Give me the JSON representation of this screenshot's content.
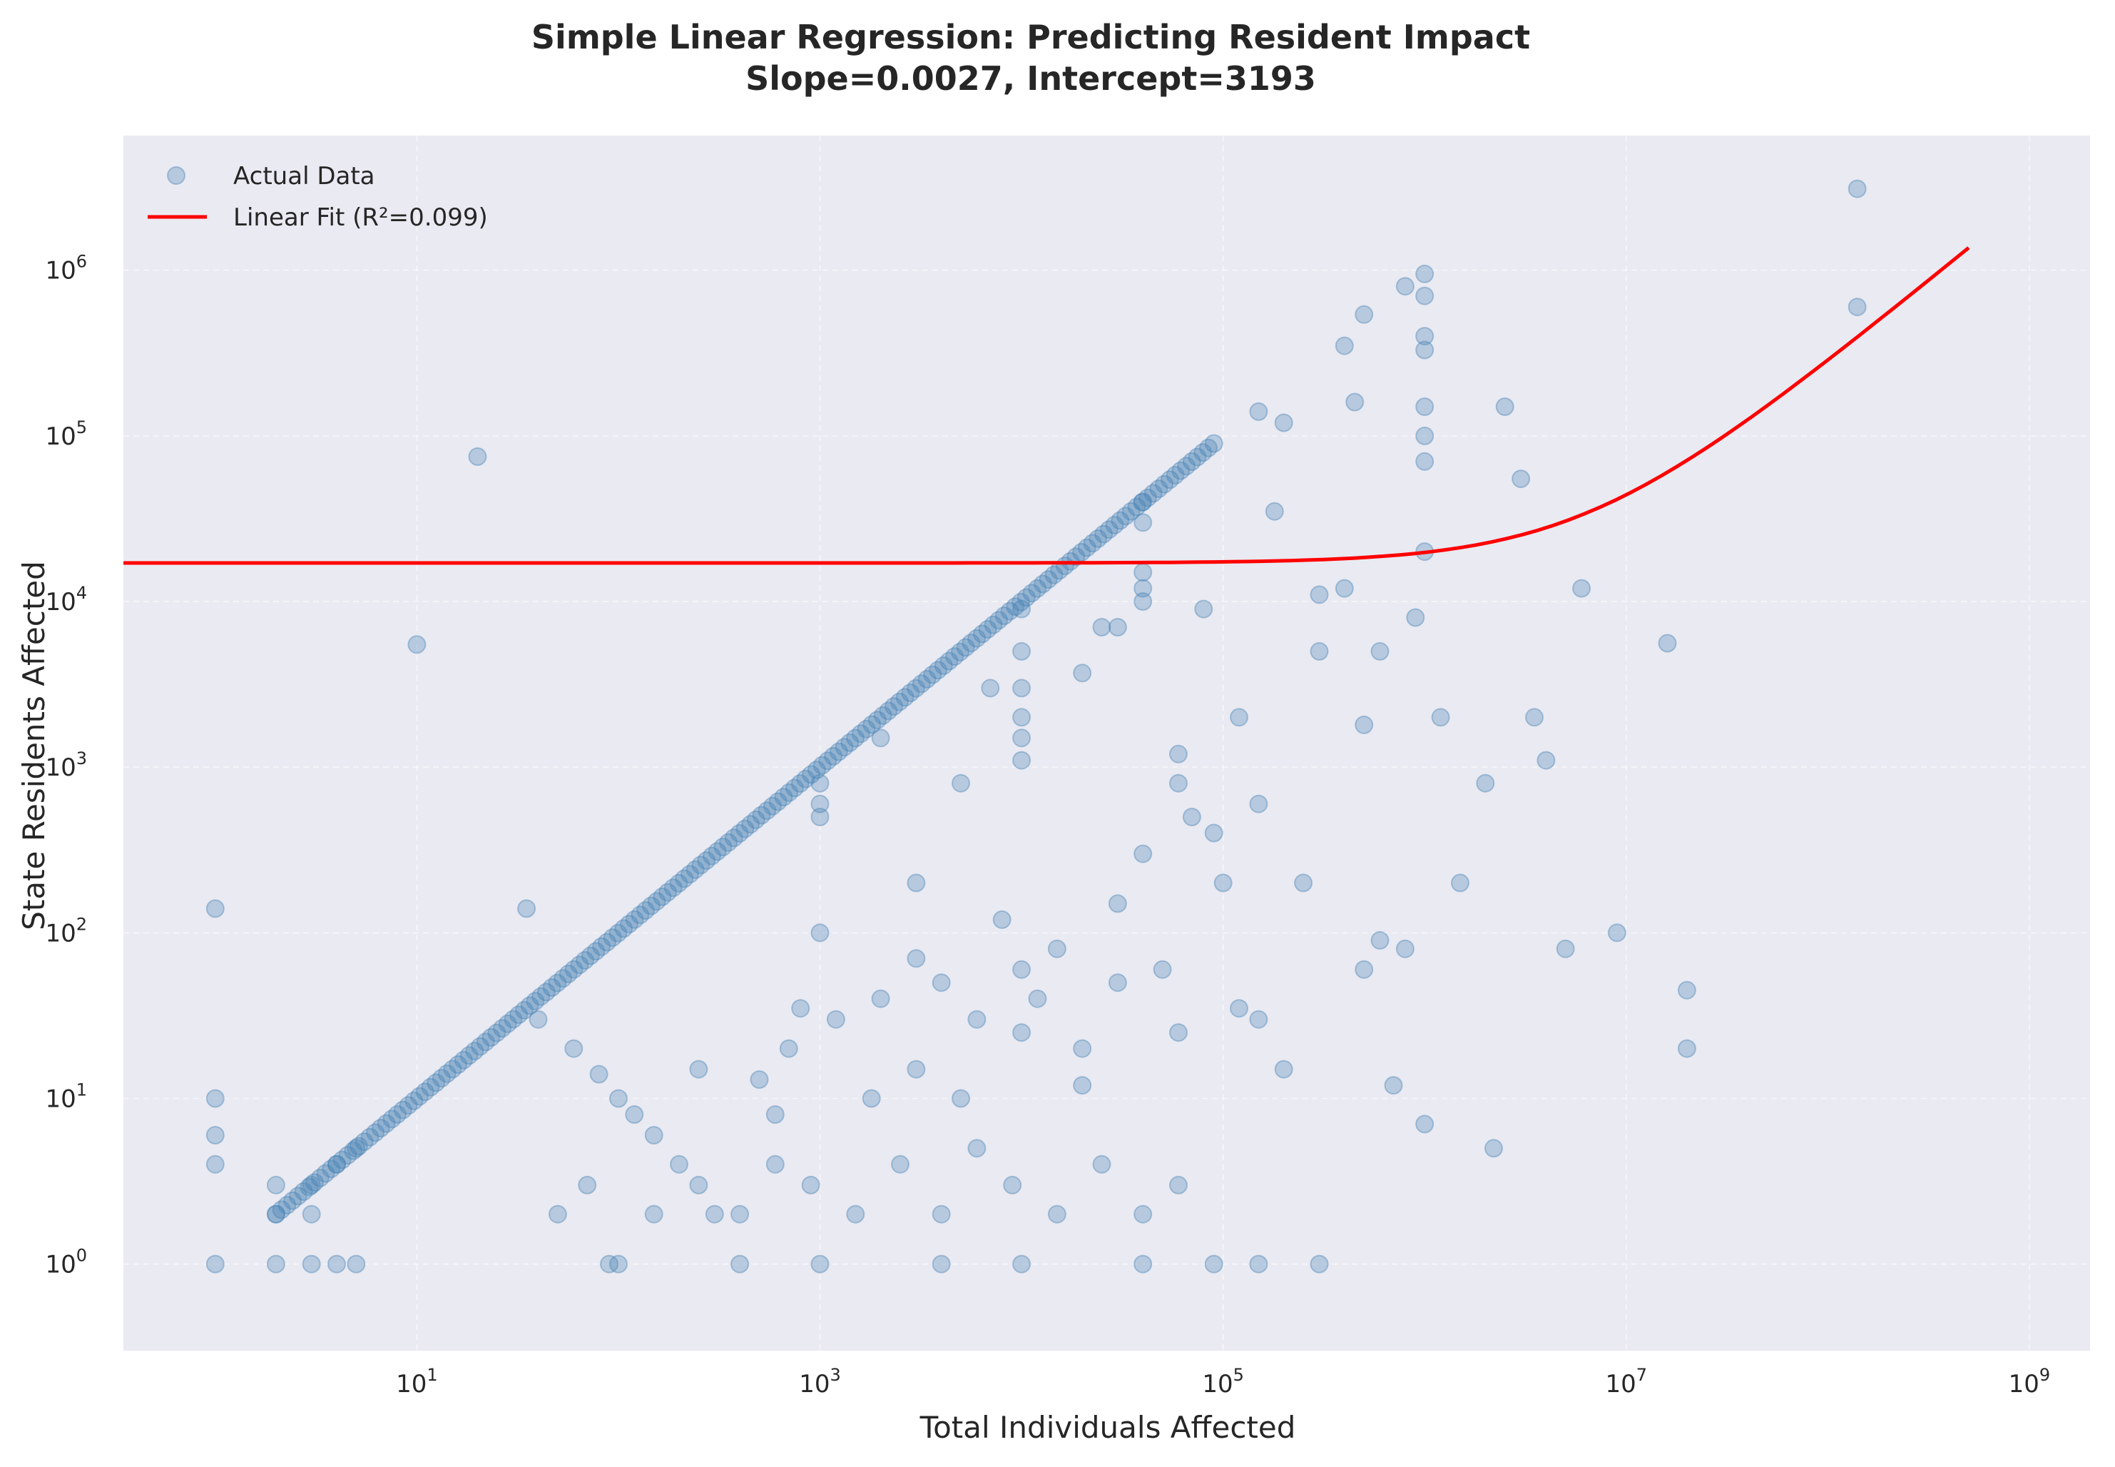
{
  "chart_data": {
    "type": "scatter",
    "title": "Simple Linear Regression: Predicting Resident Impact",
    "subtitle": "Slope=0.0027, Intercept=3193",
    "xlabel": "Total Individuals Affected",
    "ylabel": "State Residents Affected",
    "xscale": "log",
    "yscale": "log",
    "xlim": [
      0.35,
      2000000000
    ],
    "ylim": [
      0.3,
      6500000
    ],
    "xticks": [
      {
        "value": 10,
        "base": "10",
        "exp": "1"
      },
      {
        "value": 1000,
        "base": "10",
        "exp": "3"
      },
      {
        "value": 100000,
        "base": "10",
        "exp": "5"
      },
      {
        "value": 10000000,
        "base": "10",
        "exp": "7"
      },
      {
        "value": 1000000000,
        "base": "10",
        "exp": "9"
      }
    ],
    "yticks": [
      {
        "value": 1,
        "base": "10",
        "exp": "0"
      },
      {
        "value": 10,
        "base": "10",
        "exp": "1"
      },
      {
        "value": 100,
        "base": "10",
        "exp": "2"
      },
      {
        "value": 1000,
        "base": "10",
        "exp": "3"
      },
      {
        "value": 10000,
        "base": "10",
        "exp": "4"
      },
      {
        "value": 100000,
        "base": "10",
        "exp": "5"
      },
      {
        "value": 1000000,
        "base": "10",
        "exp": "6"
      }
    ],
    "grid": true,
    "legend_position": "top-left",
    "colors": {
      "scatter": "#4682b4",
      "fit": "#ff0000",
      "background": "#eaeaf2"
    },
    "series": [
      {
        "name": "Actual Data",
        "kind": "scatter",
        "diagonal_range": [
          2,
          90000
        ],
        "points": [
          [
            1,
            1
          ],
          [
            1,
            4
          ],
          [
            1,
            6
          ],
          [
            1,
            10
          ],
          [
            1,
            140
          ],
          [
            2,
            1
          ],
          [
            2,
            2
          ],
          [
            2,
            3
          ],
          [
            3,
            1
          ],
          [
            3,
            2
          ],
          [
            3,
            3
          ],
          [
            4,
            1
          ],
          [
            4,
            4
          ],
          [
            5,
            1
          ],
          [
            5,
            5
          ],
          [
            10,
            5500
          ],
          [
            20,
            75000
          ],
          [
            35,
            140
          ],
          [
            40,
            30
          ],
          [
            60,
            20
          ],
          [
            80,
            14
          ],
          [
            100,
            10
          ],
          [
            120,
            8
          ],
          [
            150,
            6
          ],
          [
            200,
            4
          ],
          [
            300,
            2
          ],
          [
            500,
            13
          ],
          [
            800,
            35
          ],
          [
            1000,
            100
          ],
          [
            1200,
            30
          ],
          [
            2000,
            40
          ],
          [
            3000,
            70
          ],
          [
            4000,
            50
          ],
          [
            6000,
            30
          ],
          [
            8000,
            120
          ],
          [
            10000,
            60
          ],
          [
            12000,
            40
          ],
          [
            15000,
            80
          ],
          [
            20000,
            20
          ],
          [
            30000,
            150
          ],
          [
            40000,
            300
          ],
          [
            50000,
            60
          ],
          [
            60000,
            1200
          ],
          [
            70000,
            500
          ],
          [
            80000,
            9000
          ],
          [
            100000,
            200
          ],
          [
            120000,
            35
          ],
          [
            150000,
            600
          ],
          [
            200000,
            15
          ],
          [
            250000,
            200
          ],
          [
            300000,
            5000
          ],
          [
            400000,
            12000
          ],
          [
            500000,
            1800
          ],
          [
            600000,
            90
          ],
          [
            700000,
            12
          ],
          [
            800000,
            80
          ],
          [
            1000000,
            7
          ],
          [
            1200000,
            2000
          ],
          [
            1500000,
            200
          ],
          [
            2000000,
            800
          ],
          [
            2200000,
            5
          ],
          [
            2500000,
            150000
          ],
          [
            3000000,
            55000
          ],
          [
            3500000,
            2000
          ],
          [
            4000000,
            1100
          ],
          [
            5000000,
            80
          ],
          [
            6000000,
            12000
          ],
          [
            9000000,
            100
          ],
          [
            16000000,
            5600
          ],
          [
            20000000,
            45
          ],
          [
            20000000,
            20
          ],
          [
            140000000,
            3100000
          ],
          [
            140000000,
            600000
          ],
          [
            1000000,
            950000
          ],
          [
            1000000,
            700000
          ],
          [
            1000000,
            400000
          ],
          [
            1000000,
            330000
          ],
          [
            1000000,
            150000
          ],
          [
            1000000,
            100000
          ],
          [
            1000000,
            70000
          ],
          [
            900000,
            8000
          ],
          [
            800000,
            800000
          ],
          [
            500000,
            540000
          ],
          [
            400000,
            350000
          ],
          [
            450000,
            160000
          ],
          [
            150000,
            140000
          ],
          [
            180000,
            35000
          ],
          [
            200000,
            120000
          ],
          [
            40000,
            40000
          ],
          [
            40000,
            30000
          ],
          [
            40000,
            15000
          ],
          [
            40000,
            12000
          ],
          [
            40000,
            10000
          ],
          [
            10000,
            9000
          ],
          [
            10000,
            5000
          ],
          [
            10000,
            3000
          ],
          [
            10000,
            2000
          ],
          [
            10000,
            1500
          ],
          [
            10000,
            1100
          ],
          [
            1000,
            800
          ],
          [
            1000,
            600
          ],
          [
            1000,
            500
          ],
          [
            2000,
            1500
          ],
          [
            5000,
            800
          ],
          [
            3000,
            200
          ],
          [
            7000,
            3000
          ],
          [
            20000,
            3700
          ],
          [
            25000,
            7000
          ],
          [
            30000,
            7000
          ],
          [
            60000,
            800
          ],
          [
            90000,
            400
          ],
          [
            120000,
            2000
          ],
          [
            300000,
            11000
          ],
          [
            600000,
            5000
          ],
          [
            1000000,
            20000
          ],
          [
            50,
            2
          ],
          [
            70,
            3
          ],
          [
            90,
            1
          ],
          [
            150,
            2
          ],
          [
            250,
            3
          ],
          [
            400,
            2
          ],
          [
            600,
            4
          ],
          [
            900,
            3
          ],
          [
            1500,
            2
          ],
          [
            2500,
            4
          ],
          [
            4000,
            2
          ],
          [
            6000,
            5
          ],
          [
            9000,
            3
          ],
          [
            15000,
            2
          ],
          [
            25000,
            4
          ],
          [
            40000,
            2
          ],
          [
            60000,
            3
          ],
          [
            90000,
            1
          ],
          [
            150000,
            1
          ],
          [
            300000,
            1
          ],
          [
            100,
            1
          ],
          [
            1000,
            1
          ],
          [
            10000,
            1
          ],
          [
            400,
            1
          ],
          [
            4000,
            1
          ],
          [
            40000,
            1
          ],
          [
            700,
            20
          ],
          [
            1800,
            10
          ],
          [
            5000,
            10
          ],
          [
            20000,
            12
          ],
          [
            60000,
            25
          ],
          [
            150000,
            30
          ],
          [
            500000,
            60
          ],
          [
            250,
            15
          ],
          [
            600,
            8
          ],
          [
            3000,
            15
          ],
          [
            10000,
            25
          ],
          [
            30000,
            50
          ]
        ]
      },
      {
        "name": "Linear Fit (R²=0.099)",
        "kind": "line",
        "slope": 0.0027,
        "intercept": 3193,
        "x_range": [
          0.35,
          500000000
        ]
      }
    ]
  }
}
